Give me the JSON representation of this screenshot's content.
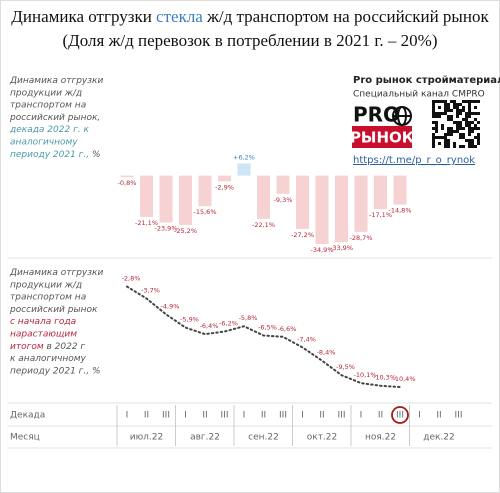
{
  "header": {
    "title_parts": [
      {
        "text": "Динамика отгрузки ",
        "color": "#111111"
      },
      {
        "text": "стекла",
        "color": "#3a7fc1"
      },
      {
        "text": " ж/д транспортом на российский рынок",
        "color": "#111111"
      }
    ],
    "subtitle": "(Доля ж/д перевозок в потреблении в 2021 г. – 20%)"
  },
  "sidebar": {
    "channel": "Pro рынок стройматериалов",
    "subchannel": "Специальный канал CMPRO",
    "logo_top": "PRO",
    "logo_bottom": "РЫНОК",
    "link": "https://t.me/p_r_o_rynok"
  },
  "notes": [
    [
      [
        {
          "text": "Динамика отгрузки",
          "color": "#555555"
        }
      ],
      [
        {
          "text": "продукции ж/д",
          "color": "#555555"
        }
      ],
      [
        {
          "text": "транспортом на",
          "color": "#555555"
        }
      ],
      [
        {
          "text": "российский рынок,",
          "color": "#555555"
        }
      ],
      [
        {
          "text": "декада 2022 г. к",
          "color": "#4a9aa8"
        }
      ],
      [
        {
          "text": "аналогичному",
          "color": "#4a9aa8"
        }
      ],
      [
        {
          "text": "периоду 2021 г.,",
          "color": "#4a9aa8"
        },
        {
          "text": " %",
          "color": "#555555"
        }
      ]
    ],
    [
      [
        {
          "text": "Динамика отгрузки",
          "color": "#555555"
        }
      ],
      [
        {
          "text": "продукции ж/д",
          "color": "#555555"
        }
      ],
      [
        {
          "text": "транспортом на",
          "color": "#555555"
        }
      ],
      [
        {
          "text": "российский рынок",
          "color": "#555555"
        }
      ],
      [
        {
          "text": "с начала года",
          "color": "#b5283a"
        }
      ],
      [
        {
          "text": "нарастающим",
          "color": "#b5283a"
        }
      ],
      [
        {
          "text": "итогом",
          "color": "#b5283a"
        },
        {
          "text": " в 2022 г",
          "color": "#555555"
        }
      ],
      [
        {
          "text": "к аналогичному",
          "color": "#555555"
        }
      ],
      [
        {
          "text": "периоду 2021 г., %",
          "color": "#555555"
        }
      ]
    ]
  ],
  "x_axis": {
    "decade_title": "Декада",
    "month_title": "Месяц",
    "decades": [
      "I",
      "II",
      "III",
      "I",
      "II",
      "III",
      "I",
      "II",
      "III",
      "I",
      "II",
      "III",
      "I",
      "II",
      "III",
      "I",
      "II",
      "III"
    ],
    "months": [
      "июл.22",
      "авг.22",
      "сен.22",
      "окт.22",
      "ноя.22",
      "дек.22"
    ]
  },
  "chart_data": [
    {
      "type": "bar",
      "ylim": [
        -40,
        10
      ],
      "color": "#f6d2d3",
      "positive_color": "#cde6f6",
      "label_color": "#b5283a",
      "positive_label_color": "#3a7fc1",
      "values": [
        -0.8,
        -21.1,
        -23.9,
        -25.2,
        -15.6,
        -2.9,
        6.2,
        -22.1,
        -9.3,
        -27.2,
        -34.9,
        -33.9,
        -28.7,
        -17.1,
        -14.8
      ],
      "value_labels": [
        "-0,8%",
        "-21,1%",
        "-23,9%",
        "-25,2%",
        "-15,6%",
        "-2,9%",
        "+6,2%",
        "-22,1%",
        "-9,3%",
        "-27,2%",
        "-34,9%",
        "-33,9%",
        "-28,7%",
        "-17,1%",
        "-14,8%"
      ]
    },
    {
      "type": "line",
      "ylim": [
        -11,
        -2
      ],
      "color": "#444444",
      "label_color": "#b5283a",
      "values": [
        -2.8,
        -3.7,
        -4.9,
        -5.9,
        -6.4,
        -6.2,
        -5.8,
        -6.5,
        -6.6,
        -7.4,
        -8.4,
        -9.5,
        -10.1,
        -10.3,
        -10.4
      ],
      "value_labels": [
        "-2,8%",
        "-3,7%",
        "-4,9%",
        "-5,9%",
        "-6,4%",
        "-6,2%",
        "-5,8%",
        "-6,5%",
        "-6,6%",
        "-7,4%",
        "-8,4%",
        "-9,5%",
        "-10,1%",
        "-10,3%",
        "-10,4%"
      ]
    }
  ]
}
